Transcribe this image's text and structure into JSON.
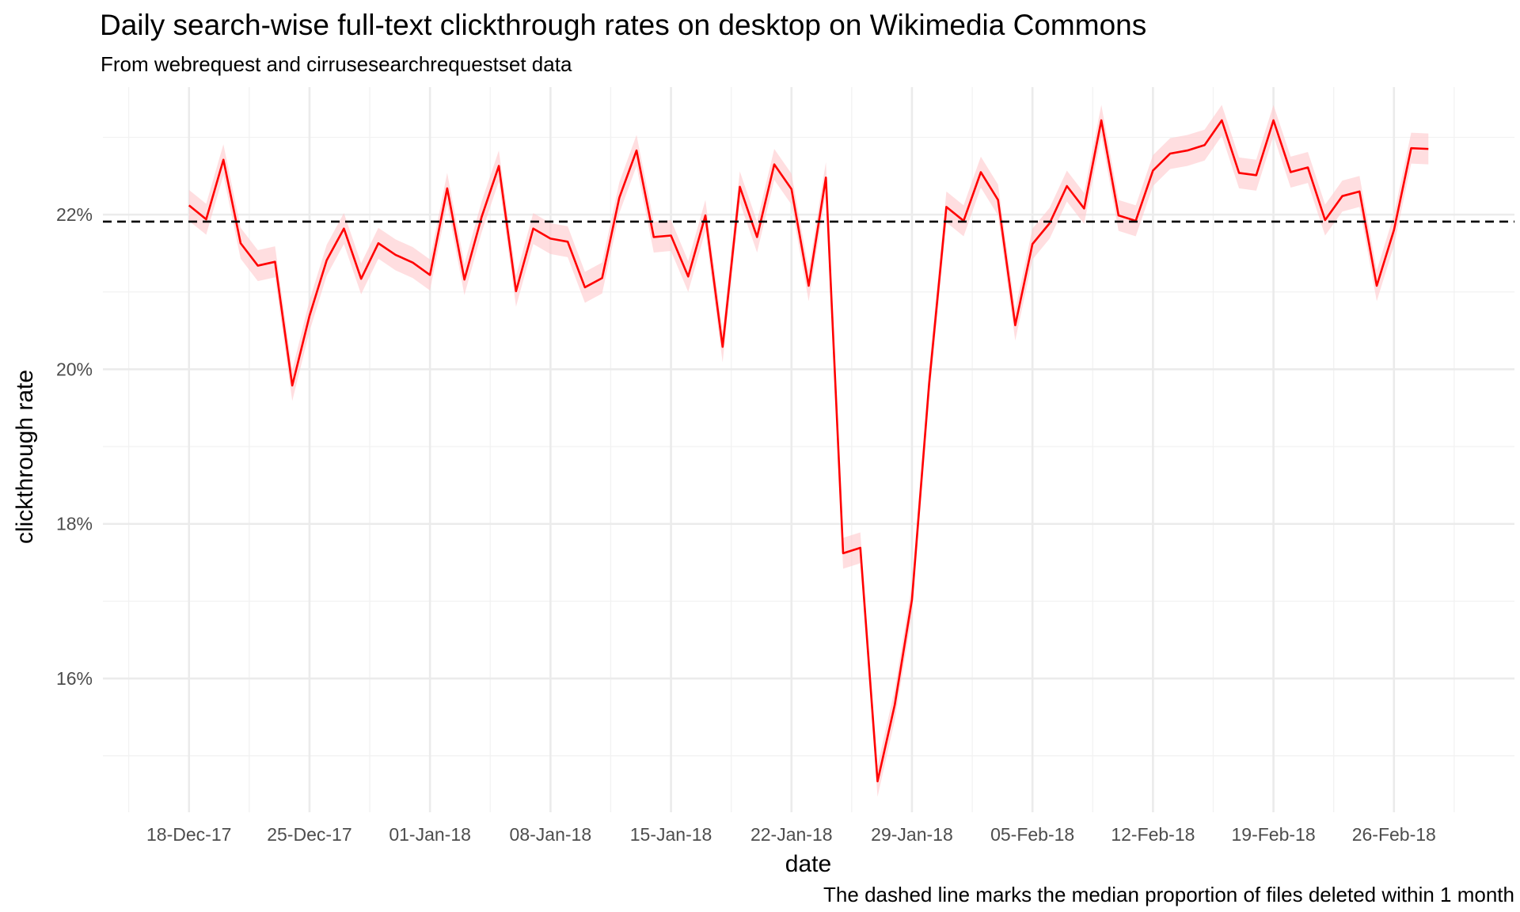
{
  "chart_data": {
    "type": "line",
    "title": "Daily search-wise full-text clickthrough rates on desktop on Wikimedia Commons",
    "subtitle": "From webrequest and cirrusesearchrequestset data",
    "xlabel": "date",
    "ylabel": "clickthrough rate",
    "caption": "The dashed line marks the median proportion of files deleted within 1 month",
    "x_axis": {
      "type": "date",
      "range": [
        "2017-12-13",
        "2018-03-05"
      ],
      "ticks": [
        {
          "date": "2017-12-18",
          "label": "18-Dec-17"
        },
        {
          "date": "2017-12-25",
          "label": "25-Dec-17"
        },
        {
          "date": "2018-01-01",
          "label": "01-Jan-18"
        },
        {
          "date": "2018-01-08",
          "label": "08-Jan-18"
        },
        {
          "date": "2018-01-15",
          "label": "15-Jan-18"
        },
        {
          "date": "2018-01-22",
          "label": "22-Jan-18"
        },
        {
          "date": "2018-01-29",
          "label": "29-Jan-18"
        },
        {
          "date": "2018-02-05",
          "label": "05-Feb-18"
        },
        {
          "date": "2018-02-12",
          "label": "12-Feb-18"
        },
        {
          "date": "2018-02-19",
          "label": "19-Feb-18"
        },
        {
          "date": "2018-02-26",
          "label": "26-Feb-18"
        }
      ]
    },
    "y_axis": {
      "range": [
        0.1427,
        0.2365
      ],
      "ticks": [
        {
          "value": 0.16,
          "label": "16%"
        },
        {
          "value": 0.18,
          "label": "18%"
        },
        {
          "value": 0.2,
          "label": "20%"
        },
        {
          "value": 0.22,
          "label": "22%"
        }
      ],
      "minor_ticks": [
        0.15,
        0.17,
        0.19,
        0.21,
        0.23
      ]
    },
    "grid": true,
    "legend": "none",
    "series": [
      {
        "color": "#ff0000",
        "band_color": "#ffc8cc",
        "start_date": "2017-12-18",
        "values": [
          0.2212,
          0.2194,
          0.2271,
          0.2163,
          0.2134,
          0.2139,
          0.1979,
          0.2069,
          0.2141,
          0.2182,
          0.2117,
          0.2163,
          0.2148,
          0.2138,
          0.2122,
          0.2234,
          0.2116,
          0.2197,
          0.2263,
          0.2101,
          0.2182,
          0.2169,
          0.2165,
          0.2106,
          0.2118,
          0.2222,
          0.2283,
          0.2171,
          0.2173,
          0.212,
          0.2199,
          0.2029,
          0.2236,
          0.2171,
          0.2265,
          0.2233,
          0.2108,
          0.2248,
          0.1762,
          0.1769,
          0.1467,
          0.1566,
          0.1702,
          0.1982,
          0.221,
          0.2192,
          0.2255,
          0.2219,
          0.2057,
          0.2162,
          0.2189,
          0.2237,
          0.2208,
          0.2322,
          0.2199,
          0.2192,
          0.2257,
          0.2279,
          0.2283,
          0.229,
          0.2322,
          0.2254,
          0.2251,
          0.2322,
          0.2255,
          0.2261,
          0.2193,
          0.2224,
          0.223,
          0.2108,
          0.218,
          0.2286,
          0.2285
        ],
        "band_halfwidth": 0.002
      }
    ],
    "reference_lines": [
      {
        "value": 0.2191,
        "style": "dashed",
        "color": "#000000"
      }
    ]
  }
}
